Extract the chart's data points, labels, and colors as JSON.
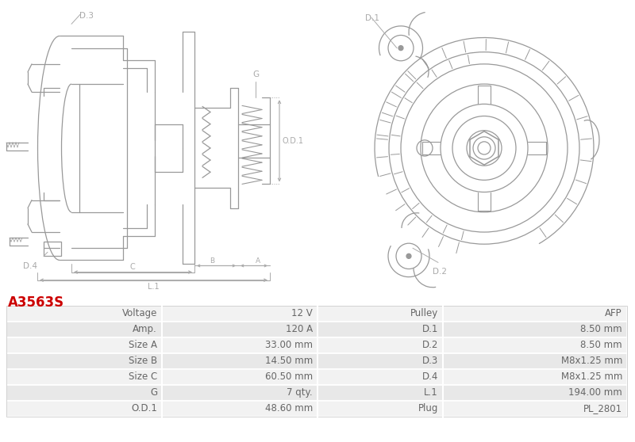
{
  "title": "A3563S",
  "title_color": "#cc0000",
  "background_color": "#ffffff",
  "table_rows": [
    [
      "Voltage",
      "12 V",
      "Pulley",
      "AFP"
    ],
    [
      "Amp.",
      "120 A",
      "D.1",
      "8.50 mm"
    ],
    [
      "Size A",
      "33.00 mm",
      "D.2",
      "8.50 mm"
    ],
    [
      "Size B",
      "14.50 mm",
      "D.3",
      "M8x1.25 mm"
    ],
    [
      "Size C",
      "60.50 mm",
      "D.4",
      "M8x1.25 mm"
    ],
    [
      "G",
      "7 qty.",
      "L.1",
      "194.00 mm"
    ],
    [
      "O.D.1",
      "48.60 mm",
      "Plug",
      "PL_2801"
    ]
  ],
  "line_color": "#999999",
  "dim_color": "#aaaaaa",
  "text_color": "#666666",
  "table_bg1": "#f2f2f2",
  "table_bg2": "#e8e8e8",
  "table_div_color": "#ffffff",
  "table_border_color": "#cccccc"
}
